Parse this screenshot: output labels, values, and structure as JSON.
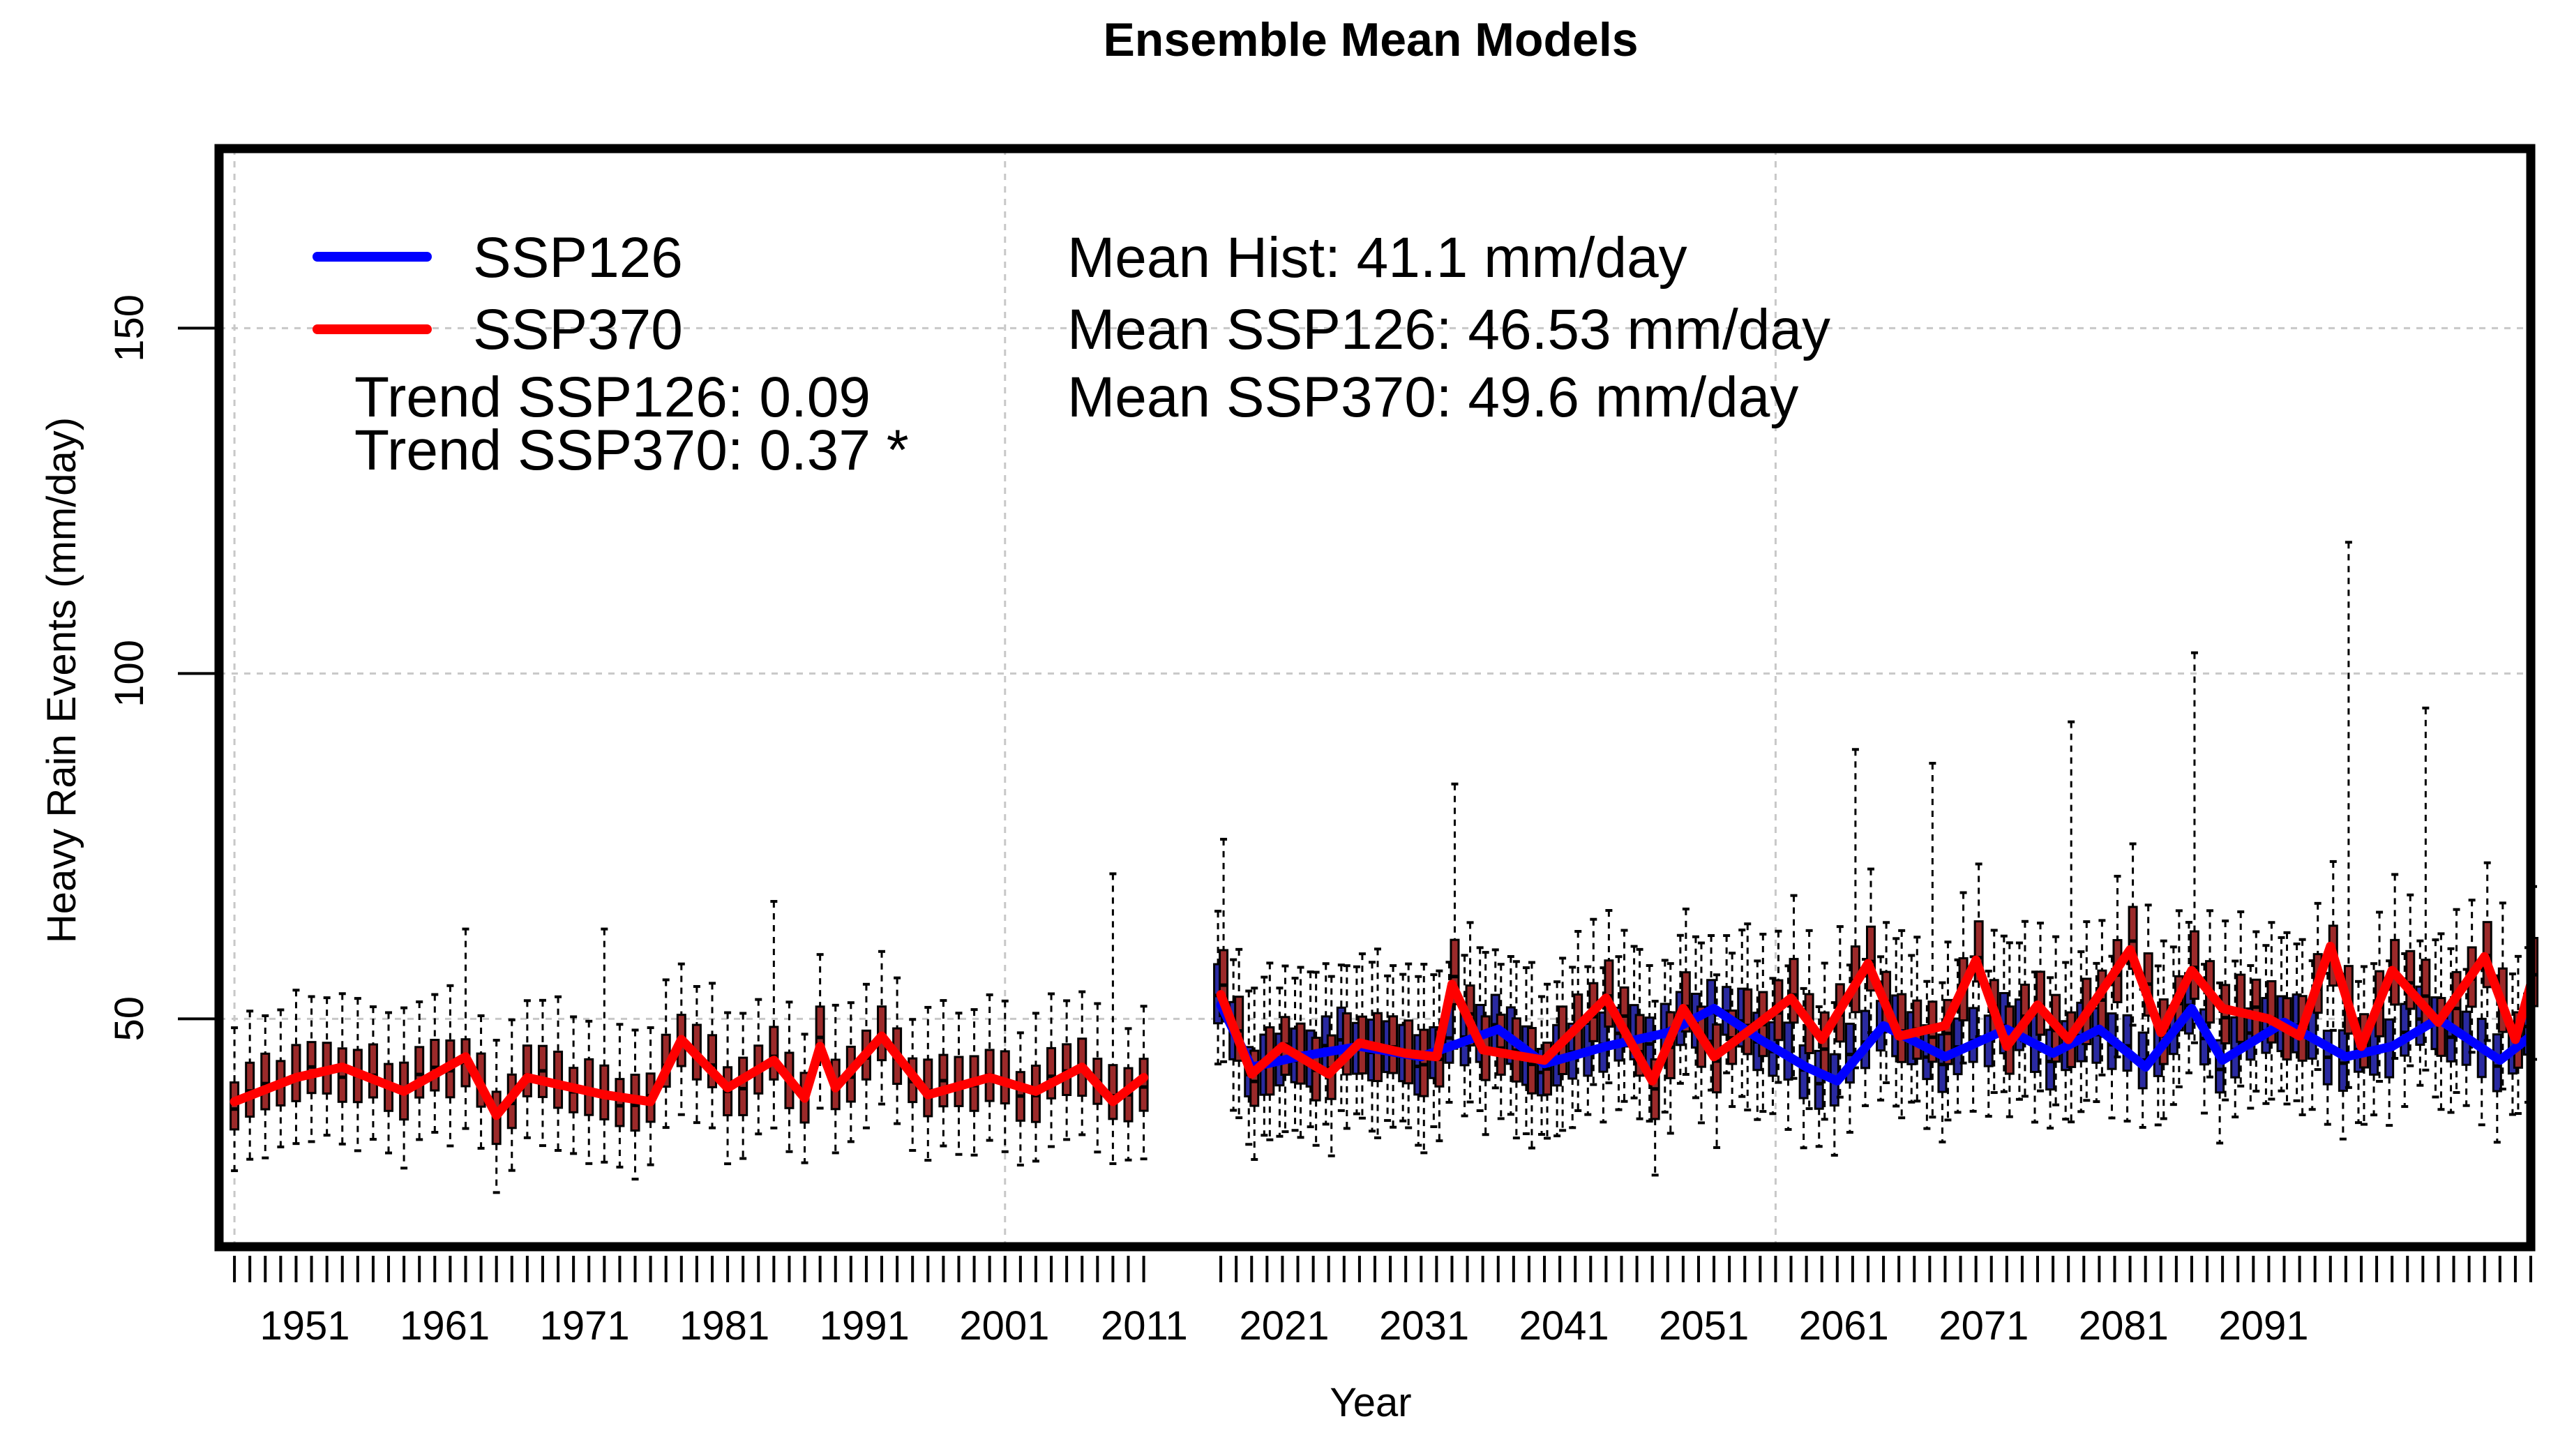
{
  "chart_data": {
    "type": "boxplot",
    "title": "Ensemble Mean Models",
    "xlabel": "Year",
    "ylabel": "Heavy Rain Events (mm/day)",
    "xlim": [
      1950,
      2100
    ],
    "ylim": [
      17,
      176
    ],
    "yticks": [
      50,
      100,
      150
    ],
    "x_tick_labels": [
      "1951",
      "1961",
      "1971",
      "1981",
      "1991",
      "2001",
      "2011",
      "2021",
      "2031",
      "2041",
      "2051",
      "2061",
      "2071",
      "2081",
      "2091"
    ],
    "historical_years": [
      1951,
      2010
    ],
    "future_years": [
      2015,
      2100
    ],
    "series": [
      {
        "name": "SSP126",
        "color": "#0000ff",
        "trend": 0.09
      },
      {
        "name": "SSP370",
        "color": "#ff0000",
        "trend": 0.37
      }
    ],
    "historical_mean_anchors": [
      {
        "year": 1951,
        "value": 38.0
      },
      {
        "year": 1955,
        "value": 41.5
      },
      {
        "year": 1958,
        "value": 43.0
      },
      {
        "year": 1962,
        "value": 39.5
      },
      {
        "year": 1966,
        "value": 44.5
      },
      {
        "year": 1968,
        "value": 36.0
      },
      {
        "year": 1970,
        "value": 41.5
      },
      {
        "year": 1975,
        "value": 39.0
      },
      {
        "year": 1978,
        "value": 38.0
      },
      {
        "year": 1980,
        "value": 47.0
      },
      {
        "year": 1983,
        "value": 40.0
      },
      {
        "year": 1986,
        "value": 44.0
      },
      {
        "year": 1988,
        "value": 38.5
      },
      {
        "year": 1989,
        "value": 46.0
      },
      {
        "year": 1990,
        "value": 40.0
      },
      {
        "year": 1993,
        "value": 47.5
      },
      {
        "year": 1996,
        "value": 39.0
      },
      {
        "year": 2000,
        "value": 41.5
      },
      {
        "year": 2003,
        "value": 39.5
      },
      {
        "year": 2006,
        "value": 43.0
      },
      {
        "year": 2008,
        "value": 38.0
      },
      {
        "year": 2010,
        "value": 41.5
      }
    ],
    "ssp126_mean_anchors": [
      {
        "year": 2015,
        "value": 52.0
      },
      {
        "year": 2017,
        "value": 43.0
      },
      {
        "year": 2020,
        "value": 44.5
      },
      {
        "year": 2024,
        "value": 46.0
      },
      {
        "year": 2028,
        "value": 44.5
      },
      {
        "year": 2033,
        "value": 48.5
      },
      {
        "year": 2036,
        "value": 43.5
      },
      {
        "year": 2040,
        "value": 46.0
      },
      {
        "year": 2044,
        "value": 48.0
      },
      {
        "year": 2047,
        "value": 51.5
      },
      {
        "year": 2050,
        "value": 47.0
      },
      {
        "year": 2053,
        "value": 43.0
      },
      {
        "year": 2055,
        "value": 41.0
      },
      {
        "year": 2058,
        "value": 49.0
      },
      {
        "year": 2062,
        "value": 44.5
      },
      {
        "year": 2066,
        "value": 48.5
      },
      {
        "year": 2069,
        "value": 45.0
      },
      {
        "year": 2072,
        "value": 48.5
      },
      {
        "year": 2075,
        "value": 43.0
      },
      {
        "year": 2078,
        "value": 51.5
      },
      {
        "year": 2080,
        "value": 44.0
      },
      {
        "year": 2084,
        "value": 49.5
      },
      {
        "year": 2088,
        "value": 44.5
      },
      {
        "year": 2091,
        "value": 46.0
      },
      {
        "year": 2094,
        "value": 50.0
      },
      {
        "year": 2098,
        "value": 44.0
      },
      {
        "year": 2100,
        "value": 47.5
      }
    ],
    "ssp370_mean_anchors": [
      {
        "year": 2015,
        "value": 53.5
      },
      {
        "year": 2017,
        "value": 42.0
      },
      {
        "year": 2019,
        "value": 46.0
      },
      {
        "year": 2022,
        "value": 42.0
      },
      {
        "year": 2024,
        "value": 46.5
      },
      {
        "year": 2027,
        "value": 45.0
      },
      {
        "year": 2029,
        "value": 44.5
      },
      {
        "year": 2030,
        "value": 55.0
      },
      {
        "year": 2032,
        "value": 45.5
      },
      {
        "year": 2036,
        "value": 44.0
      },
      {
        "year": 2040,
        "value": 53.0
      },
      {
        "year": 2043,
        "value": 41.0
      },
      {
        "year": 2045,
        "value": 51.5
      },
      {
        "year": 2047,
        "value": 44.5
      },
      {
        "year": 2050,
        "value": 49.5
      },
      {
        "year": 2052,
        "value": 53.0
      },
      {
        "year": 2054,
        "value": 47.0
      },
      {
        "year": 2057,
        "value": 58.0
      },
      {
        "year": 2059,
        "value": 47.5
      },
      {
        "year": 2062,
        "value": 49.0
      },
      {
        "year": 2064,
        "value": 58.5
      },
      {
        "year": 2066,
        "value": 46.0
      },
      {
        "year": 2068,
        "value": 52.0
      },
      {
        "year": 2070,
        "value": 47.0
      },
      {
        "year": 2072,
        "value": 53.5
      },
      {
        "year": 2074,
        "value": 60.0
      },
      {
        "year": 2076,
        "value": 48.0
      },
      {
        "year": 2078,
        "value": 57.0
      },
      {
        "year": 2080,
        "value": 51.5
      },
      {
        "year": 2083,
        "value": 50.0
      },
      {
        "year": 2085,
        "value": 47.5
      },
      {
        "year": 2087,
        "value": 60.5
      },
      {
        "year": 2089,
        "value": 46.0
      },
      {
        "year": 2091,
        "value": 57.0
      },
      {
        "year": 2094,
        "value": 49.5
      },
      {
        "year": 2097,
        "value": 59.0
      },
      {
        "year": 2099,
        "value": 47.0
      },
      {
        "year": 2100,
        "value": 55.0
      }
    ],
    "upper_whisker_spikes": [
      {
        "year": 1966,
        "value": 63
      },
      {
        "year": 1975,
        "value": 63
      },
      {
        "year": 1986,
        "value": 67
      },
      {
        "year": 2008,
        "value": 71
      },
      {
        "year": 2015,
        "value": 76
      },
      {
        "year": 2030,
        "value": 84
      },
      {
        "year": 2056,
        "value": 89
      },
      {
        "year": 2061,
        "value": 87
      },
      {
        "year": 2070,
        "value": 93
      },
      {
        "year": 2078,
        "value": 103
      },
      {
        "year": 2088,
        "value": 119
      },
      {
        "year": 2093,
        "value": 95
      }
    ],
    "annotations": {
      "mean_hist": "Mean Hist: 41.1 mm/day",
      "mean_ssp126": "Mean SSP126: 46.53 mm/day",
      "mean_ssp370": "Mean SSP370: 49.6 mm/day",
      "trend_ssp126": "Trend SSP126: 0.09",
      "trend_ssp370": "Trend SSP370: 0.37 *"
    },
    "legend": {
      "position": "top-left",
      "entries": [
        {
          "label": "SSP126",
          "color": "#0000ff"
        },
        {
          "label": "SSP370",
          "color": "#ff0000"
        }
      ]
    },
    "grid": true
  }
}
